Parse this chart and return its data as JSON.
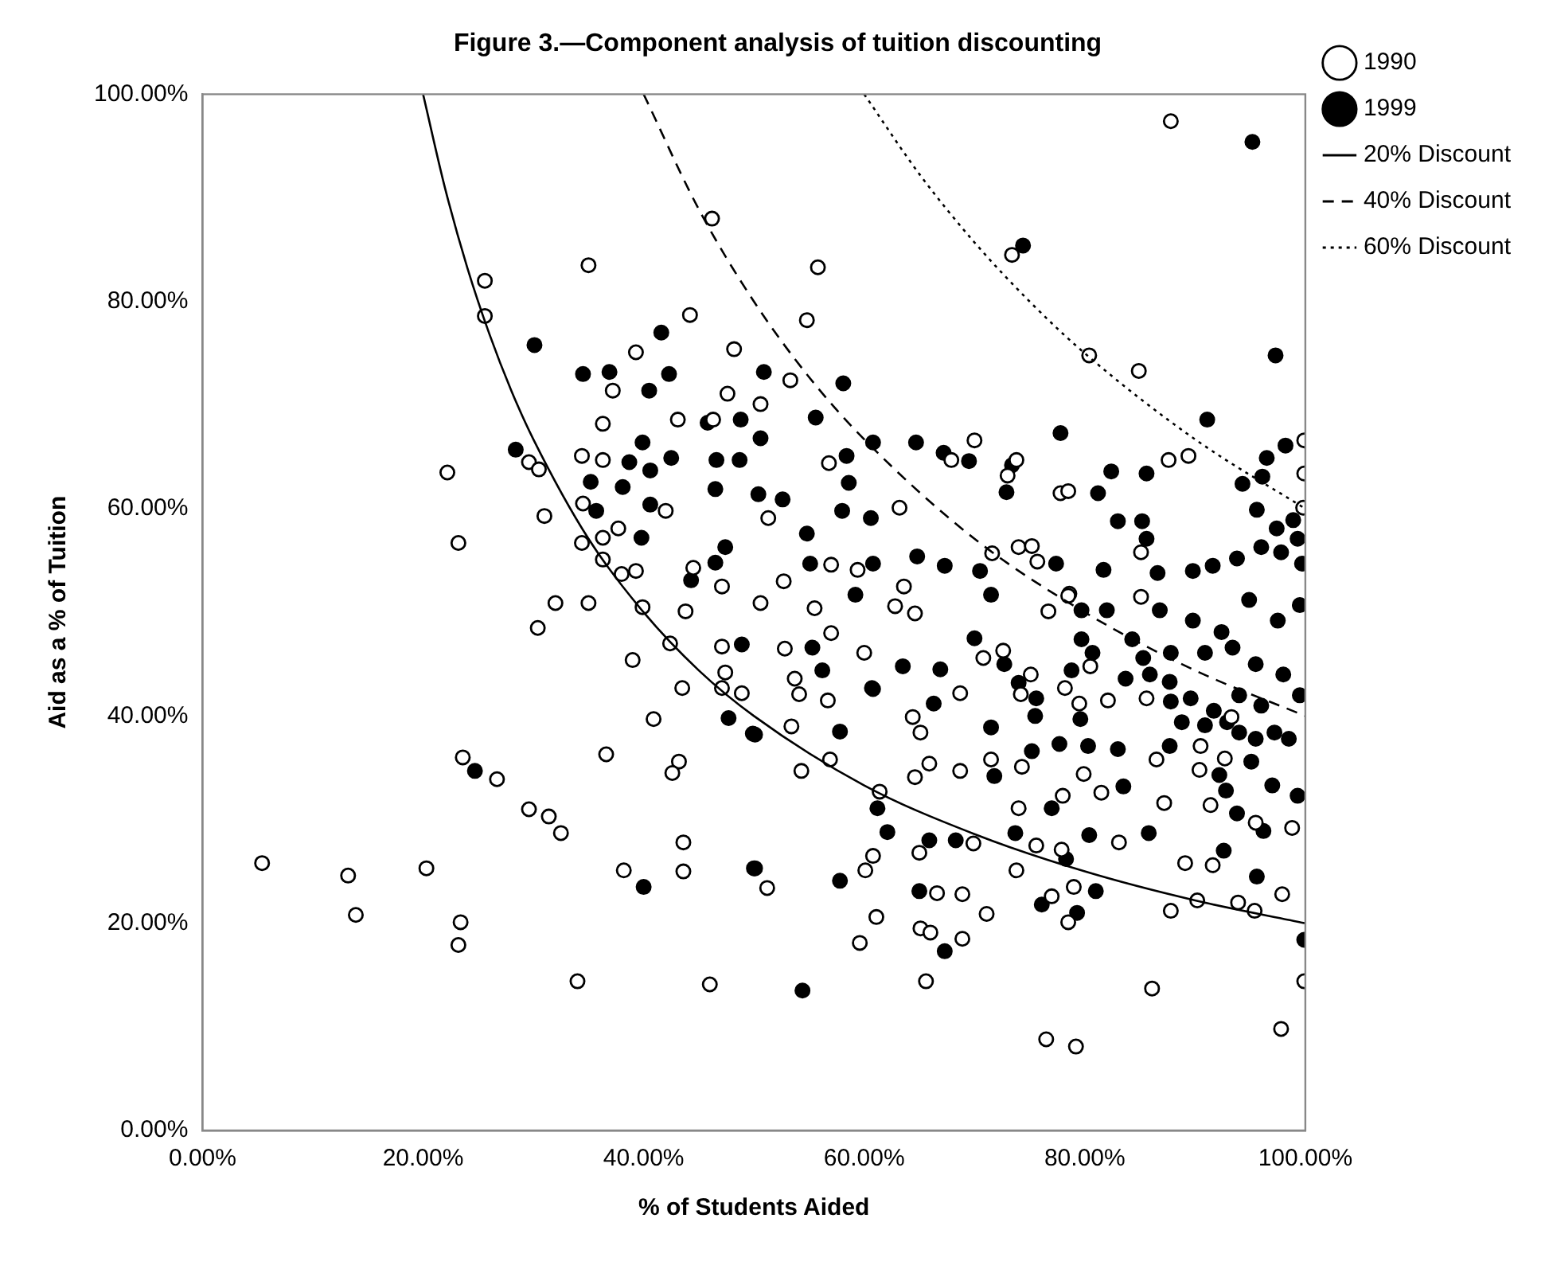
{
  "chart_data": {
    "type": "scatter",
    "title": "Figure 3.—Component analysis of tuition discounting",
    "xlabel": "% of Students Aided",
    "ylabel": "Aid as a % of Tuition",
    "xlim": [
      0,
      100
    ],
    "ylim": [
      0,
      100
    ],
    "xticks": [
      {
        "value": 0,
        "label": "0.00%"
      },
      {
        "value": 20,
        "label": "20.00%"
      },
      {
        "value": 40,
        "label": "40.00%"
      },
      {
        "value": 60,
        "label": "60.00%"
      },
      {
        "value": 80,
        "label": "80.00%"
      },
      {
        "value": 100,
        "label": "100.00%"
      }
    ],
    "yticks": [
      {
        "value": 0,
        "label": "0.00%"
      },
      {
        "value": 20,
        "label": "20.00%"
      },
      {
        "value": 40,
        "label": "40.00%"
      },
      {
        "value": 60,
        "label": "60.00%"
      },
      {
        "value": 80,
        "label": "80.00%"
      },
      {
        "value": 100,
        "label": "100.00%"
      }
    ],
    "grid": false,
    "legend": "right",
    "series": [
      {
        "name": "1990",
        "marker": "circle",
        "color": "#ffffff",
        "x": [
          5.4,
          13.2,
          13.9,
          20.3,
          23.4,
          23.2,
          23.6,
          26.7,
          29.6,
          31.4,
          32.5,
          34.0,
          30.4,
          32.0,
          35.0,
          39.0,
          40.9,
          36.6,
          43.2,
          42.6,
          38.2,
          43.6,
          43.6,
          46.0,
          39.9,
          43.8,
          43.5,
          47.1,
          48.9,
          47.4,
          47.1,
          42.4,
          25.6,
          25.6,
          35.0,
          46.2,
          22.2,
          23.2,
          29.6,
          30.5,
          31.0,
          36.3,
          37.2,
          39.3,
          44.2,
          48.2,
          47.6,
          34.4,
          36.3,
          43.1,
          34.5,
          36.3,
          37.7,
          34.4,
          36.3,
          38.0,
          39.3,
          44.5,
          47.1,
          42.0,
          46.3,
          87.8,
          73.4,
          55.8,
          54.8,
          80.4,
          84.9,
          53.3,
          50.6,
          87.6,
          89.4,
          99.9,
          99.9,
          99.8,
          70.0,
          67.9,
          73.8,
          73.0,
          77.8,
          78.5,
          56.8,
          63.2,
          51.3,
          57.0,
          59.4,
          71.6,
          74.0,
          75.2,
          75.7,
          52.7,
          63.6,
          85.1,
          78.6,
          76.5,
          79.2,
          97.8,
          99.9,
          86.1,
          65.6,
          59.6,
          61.1,
          65.1,
          66.0,
          68.9,
          71.1,
          78.5,
          77.0,
          79.0,
          87.8,
          90.2,
          93.9,
          95.4,
          97.9,
          51.2,
          60.1,
          60.8,
          66.6,
          68.9,
          65.0,
          69.9,
          73.8,
          75.6,
          77.9,
          83.1,
          89.1,
          91.6,
          98.8,
          61.4,
          74.0,
          78.0,
          81.5,
          87.2,
          91.4,
          95.5,
          54.3,
          56.9,
          64.6,
          65.9,
          68.7,
          74.3,
          79.9,
          86.5,
          90.4,
          92.7,
          53.4,
          54.1,
          56.7,
          64.4,
          65.1,
          68.7,
          71.5,
          74.2,
          79.5,
          82.1,
          85.6,
          90.5,
          93.3,
          53.7,
          52.8,
          57.0,
          60.0,
          64.6,
          62.8,
          55.5,
          50.6,
          70.8,
          72.6,
          75.1,
          78.2,
          76.7,
          80.5,
          85.1,
          78.5
        ],
        "values": [
          25.8,
          24.6,
          20.8,
          25.3,
          20.1,
          17.9,
          36.0,
          33.9,
          31.0,
          30.3,
          28.7,
          14.4,
          48.5,
          50.9,
          50.9,
          45.4,
          39.7,
          36.3,
          35.6,
          34.5,
          25.1,
          27.8,
          25.0,
          14.1,
          50.5,
          50.1,
          42.7,
          42.7,
          42.2,
          44.2,
          46.7,
          47.0,
          82.0,
          78.6,
          83.5,
          88.0,
          63.5,
          56.7,
          64.5,
          63.8,
          59.3,
          68.2,
          71.4,
          75.1,
          78.7,
          75.4,
          71.1,
          65.1,
          64.7,
          68.6,
          60.5,
          57.2,
          58.1,
          56.7,
          55.1,
          53.7,
          54.0,
          54.3,
          52.5,
          59.8,
          68.6,
          97.4,
          84.5,
          83.3,
          78.2,
          74.8,
          73.3,
          72.4,
          70.1,
          64.7,
          65.1,
          66.6,
          63.4,
          60.1,
          66.6,
          64.7,
          64.7,
          63.2,
          61.5,
          61.7,
          64.4,
          60.1,
          59.1,
          54.6,
          54.1,
          55.7,
          56.3,
          56.4,
          54.9,
          53.0,
          52.5,
          55.8,
          51.8,
          8.8,
          8.1,
          9.8,
          14.4,
          13.7,
          14.4,
          18.1,
          20.6,
          19.5,
          19.1,
          18.5,
          20.9,
          20.1,
          22.6,
          23.5,
          21.2,
          22.2,
          22.0,
          21.2,
          22.8,
          23.4,
          25.1,
          26.5,
          22.9,
          22.8,
          26.8,
          27.7,
          25.1,
          27.5,
          27.1,
          27.8,
          25.8,
          25.6,
          29.2,
          32.7,
          31.1,
          32.3,
          32.6,
          31.6,
          31.4,
          29.7,
          34.7,
          35.8,
          34.1,
          35.4,
          34.7,
          35.1,
          34.4,
          35.8,
          34.8,
          35.9,
          39.0,
          42.1,
          41.5,
          39.9,
          38.4,
          42.2,
          35.8,
          42.1,
          41.2,
          41.5,
          41.7,
          37.1,
          39.9,
          43.6,
          46.5,
          48.0,
          46.1,
          49.9,
          50.6,
          50.4,
          50.9,
          45.6,
          46.3,
          44.0,
          42.7,
          50.1,
          44.8,
          51.5,
          51.6
        ]
      },
      {
        "name": "1999",
        "marker": "circle",
        "color": "#000000",
        "x": [
          24.7,
          40.0,
          47.7,
          48.9,
          49.9,
          50.0,
          30.1,
          34.5,
          36.9,
          41.6,
          42.3,
          40.5,
          28.4,
          39.9,
          38.7,
          40.6,
          42.5,
          35.2,
          38.1,
          35.7,
          40.6,
          39.8,
          45.8,
          48.8,
          46.6,
          48.7,
          46.5,
          47.4,
          46.5,
          44.3,
          95.2,
          74.4,
          97.3,
          91.1,
          77.8,
          58.1,
          55.6,
          50.9,
          50.6,
          60.8,
          64.7,
          67.2,
          69.5,
          58.4,
          58.6,
          73.4,
          72.9,
          81.2,
          82.4,
          85.6,
          83.0,
          85.2,
          85.6,
          50.4,
          52.6,
          58.0,
          60.6,
          54.8,
          55.1,
          60.8,
          64.8,
          67.3,
          70.5,
          77.4,
          81.7,
          86.6,
          94.3,
          96.5,
          98.2,
          96.1,
          95.6,
          98.9,
          99.3,
          97.4,
          96.0,
          97.8,
          93.8,
          99.7,
          89.8,
          91.6,
          54.4,
          50.1,
          57.8,
          67.3,
          65.0,
          76.1,
          79.3,
          81.0,
          99.9,
          95.6,
          61.2,
          62.1,
          65.9,
          68.3,
          73.7,
          78.3,
          77.0,
          80.4,
          85.8,
          92.6,
          96.2,
          93.8,
          99.3,
          50.1,
          57.8,
          60.7,
          66.3,
          71.5,
          71.8,
          75.2,
          77.7,
          75.5,
          83.5,
          83.0,
          87.7,
          92.2,
          92.8,
          95.1,
          97.0,
          88.8,
          90.9,
          55.3,
          56.2,
          60.8,
          63.5,
          66.9,
          70.0,
          72.7,
          74.0,
          75.6,
          79.7,
          80.7,
          78.8,
          79.6,
          80.3,
          84.3,
          85.3,
          85.9,
          83.7,
          87.7,
          87.8,
          89.6,
          91.7,
          92.9,
          94.0,
          95.5,
          97.2,
          98.5,
          87.8,
          90.9,
          93.4,
          95.5,
          98.0,
          99.5,
          96.0,
          94.0,
          97.5,
          94.9,
          99.5,
          89.8,
          86.8,
          92.4,
          82.0,
          79.7,
          59.2,
          71.5
        ],
        "values": [
          34.7,
          23.5,
          39.8,
          46.9,
          38.3,
          25.3,
          75.8,
          73.0,
          73.2,
          77.0,
          73.0,
          71.4,
          65.7,
          66.4,
          64.5,
          63.7,
          64.9,
          62.6,
          62.1,
          59.8,
          60.4,
          57.2,
          68.3,
          68.6,
          64.7,
          64.7,
          61.9,
          56.3,
          54.8,
          53.1,
          95.4,
          85.4,
          74.8,
          68.6,
          67.3,
          72.1,
          68.8,
          73.2,
          66.8,
          66.4,
          66.4,
          65.4,
          64.6,
          65.1,
          62.5,
          64.2,
          61.6,
          61.5,
          63.6,
          63.4,
          58.8,
          58.8,
          57.1,
          61.4,
          60.9,
          59.8,
          59.1,
          57.6,
          54.7,
          54.7,
          55.4,
          54.5,
          54.0,
          54.7,
          54.1,
          53.8,
          62.4,
          64.9,
          66.1,
          63.1,
          59.9,
          58.9,
          57.1,
          58.1,
          56.3,
          55.8,
          55.2,
          54.7,
          54.0,
          54.5,
          13.5,
          25.3,
          24.1,
          17.3,
          23.1,
          21.8,
          21.0,
          23.1,
          18.4,
          24.5,
          31.1,
          28.8,
          28.0,
          28.0,
          28.7,
          26.2,
          31.1,
          28.5,
          28.7,
          27.0,
          28.9,
          30.6,
          32.3,
          38.2,
          38.5,
          42.7,
          41.2,
          38.9,
          34.2,
          36.6,
          37.3,
          40.0,
          33.2,
          36.8,
          37.1,
          34.3,
          32.8,
          35.6,
          33.3,
          39.4,
          39.1,
          46.6,
          44.4,
          42.6,
          44.8,
          44.5,
          47.5,
          45.0,
          43.2,
          41.7,
          47.4,
          46.1,
          44.4,
          39.7,
          37.1,
          47.4,
          45.6,
          44.0,
          43.6,
          43.3,
          41.4,
          41.7,
          40.5,
          39.4,
          38.4,
          37.8,
          38.4,
          37.8,
          46.1,
          46.1,
          46.6,
          45.0,
          44.0,
          42.0,
          41.0,
          42.0,
          49.2,
          51.2,
          50.7,
          49.2,
          50.2,
          48.1,
          50.2,
          50.2,
          51.7,
          51.7
        ]
      },
      {
        "name": "20% Discount",
        "type": "line",
        "marker": "none",
        "color": "#000000",
        "line_style": "solid",
        "x": [
          20,
          22,
          24,
          26,
          28,
          30,
          35,
          40,
          45,
          50,
          60,
          70,
          80,
          90,
          100
        ],
        "values": [
          100,
          90.9,
          83.3,
          76.9,
          71.4,
          66.7,
          57.1,
          50,
          44.4,
          40,
          33.3,
          28.6,
          25,
          22.2,
          20
        ]
      },
      {
        "name": "40% Discount",
        "type": "line",
        "marker": "none",
        "color": "#000000",
        "line_style": "dashed",
        "x": [
          40,
          45,
          50,
          55,
          60,
          70,
          80,
          90,
          100
        ],
        "values": [
          100,
          88.9,
          80,
          72.7,
          66.7,
          57.1,
          50,
          44.4,
          40
        ]
      },
      {
        "name": "60% Discount",
        "type": "line",
        "marker": "none",
        "color": "#000000",
        "line_style": "dotted",
        "x": [
          60,
          65,
          70,
          75,
          80,
          90,
          100
        ],
        "values": [
          100,
          92.3,
          85.7,
          80,
          75,
          66.7,
          60
        ]
      }
    ]
  }
}
